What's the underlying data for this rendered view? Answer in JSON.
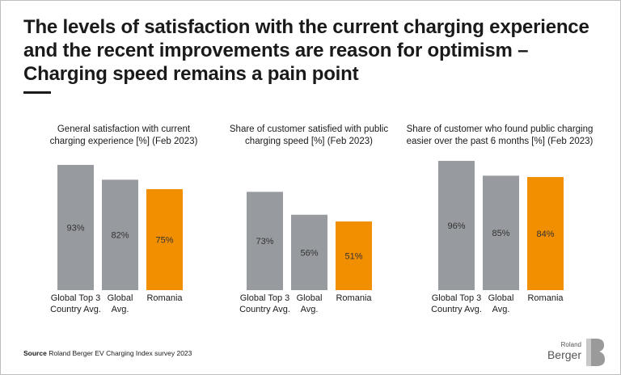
{
  "headline": {
    "line1": "The levels of satisfaction with the current charging experience",
    "line2": "and the recent improvements are reason for optimism –",
    "line3": "Charging speed remains a pain point"
  },
  "colors": {
    "gray": "#979a9e",
    "highlight": "#f18f01"
  },
  "chart_data": [
    {
      "type": "bar",
      "title_lines": [
        "General satisfaction with current",
        "charging experience [%] (Feb 2023)"
      ],
      "categories": [
        [
          "Global Top 3",
          "Country Avg."
        ],
        [
          "Global",
          "Avg."
        ],
        [
          "Romania"
        ]
      ],
      "values": [
        93,
        82,
        75
      ],
      "labels": [
        "93%",
        "82%",
        "75%"
      ],
      "highlight_index": 2
    },
    {
      "type": "bar",
      "title_lines": [
        "Share of customer satisfied with public",
        "charging speed [%] (Feb 2023)"
      ],
      "categories": [
        [
          "Global Top 3",
          "Country Avg."
        ],
        [
          "Global",
          "Avg."
        ],
        [
          "Romania"
        ]
      ],
      "values": [
        73,
        56,
        51
      ],
      "labels": [
        "73%",
        "56%",
        "51%"
      ],
      "highlight_index": 2
    },
    {
      "type": "bar",
      "title_lines": [
        "Share of customer who found public charging",
        "easier over the past 6 months [%] (Feb 2023)"
      ],
      "categories": [
        [
          "Global Top 3",
          "Country Avg."
        ],
        [
          "Global",
          "Avg."
        ],
        [
          "Romania"
        ]
      ],
      "values": [
        96,
        85,
        84
      ],
      "labels": [
        "96%",
        "85%",
        "84%"
      ],
      "highlight_index": 2
    }
  ],
  "source": {
    "label": "Source",
    "text": "Roland Berger EV Charging Index survey 2023"
  },
  "logo": {
    "top": "Roland",
    "main": "Berger"
  }
}
